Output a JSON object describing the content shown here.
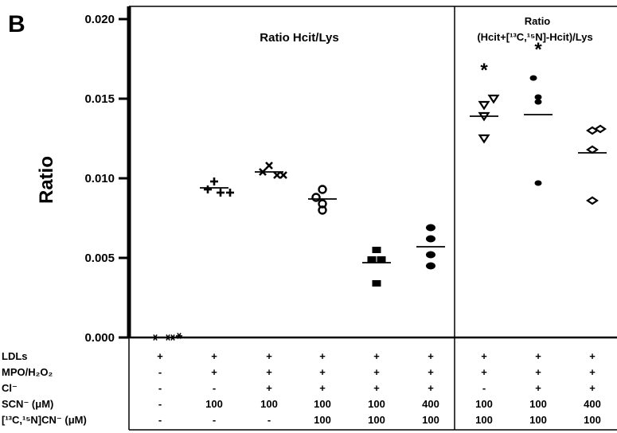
{
  "chart_data": {
    "type": "scatter",
    "panel_letter": "B",
    "ylabel": "Ratio",
    "ylim": [
      0,
      0.02
    ],
    "yticks": [
      "0.000",
      "0.005",
      "0.010",
      "0.015",
      "0.020"
    ],
    "panels": [
      {
        "title": "Ratio Hcit/Lys"
      },
      {
        "title_line1": "Ratio",
        "title_line2": "(Hcit+[¹³C,¹⁵N]-Hcit)/Lys"
      }
    ],
    "groups": [
      {
        "marker": "star",
        "values": [
          0.0,
          0.0,
          0.0,
          0.0001
        ],
        "mean": 0.0,
        "significant": ""
      },
      {
        "marker": "plus",
        "values": [
          0.0098,
          0.0093,
          0.0091,
          0.0091
        ],
        "mean": 0.0094,
        "significant": ""
      },
      {
        "marker": "cross",
        "values": [
          0.0108,
          0.0104,
          0.0102,
          0.0102
        ],
        "mean": 0.0104,
        "significant": ""
      },
      {
        "marker": "ring",
        "values": [
          0.0093,
          0.0088,
          0.0084,
          0.008
        ],
        "mean": 0.0087,
        "significant": ""
      },
      {
        "marker": "square",
        "values": [
          0.0055,
          0.0049,
          0.0049,
          0.0034
        ],
        "mean": 0.0047,
        "significant": ""
      },
      {
        "marker": "circle",
        "values": [
          0.0069,
          0.0062,
          0.0052,
          0.0045
        ],
        "mean": 0.0057,
        "significant": ""
      },
      {
        "marker": "triangle-down",
        "values": [
          0.015,
          0.0146,
          0.0139,
          0.0125
        ],
        "mean": 0.0139,
        "significant": "*"
      },
      {
        "marker": "dot",
        "values": [
          0.0163,
          0.0151,
          0.0148,
          0.0097
        ],
        "mean": 0.014,
        "significant": "*"
      },
      {
        "marker": "diamond",
        "values": [
          0.0131,
          0.013,
          0.0118,
          0.0086
        ],
        "mean": 0.0116,
        "significant": ""
      }
    ],
    "conditions": [
      {
        "label": "LDLs",
        "values": [
          "+",
          "+",
          "+",
          "+",
          "+",
          "+",
          "+",
          "+",
          "+"
        ]
      },
      {
        "label": "MPO/H₂O₂",
        "values": [
          "-",
          "+",
          "+",
          "+",
          "+",
          "+",
          "+",
          "+",
          "+"
        ]
      },
      {
        "label": "Cl⁻",
        "values": [
          "-",
          "-",
          "+",
          "+",
          "+",
          "+",
          "-",
          "+",
          "+"
        ]
      },
      {
        "label": "SCN⁻ (μM)",
        "values": [
          "-",
          "100",
          "100",
          "100",
          "100",
          "400",
          "100",
          "100",
          "400"
        ]
      },
      {
        "label": "[¹³C,¹⁵N]CN⁻ (μM)",
        "values": [
          "-",
          "-",
          "-",
          "100",
          "100",
          "100",
          "100",
          "100",
          "100"
        ]
      }
    ],
    "colors": {
      "marker": "#000000",
      "axis": "#000000",
      "background": "#ffffff"
    }
  }
}
